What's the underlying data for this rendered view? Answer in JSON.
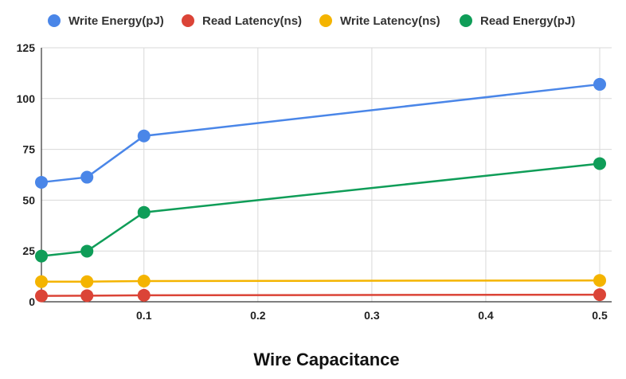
{
  "chart_data": {
    "type": "line",
    "title": "",
    "xlabel": "Wire Capacitance",
    "ylabel": "",
    "xlim": [
      0.01,
      0.5
    ],
    "ylim": [
      0,
      125
    ],
    "x_ticks": [
      0.1,
      0.2,
      0.3,
      0.4,
      0.5
    ],
    "x_tick_labels": [
      "0.1",
      "0.2",
      "0.3",
      "0.4",
      "0.5"
    ],
    "y_ticks": [
      0,
      25,
      50,
      75,
      100,
      125
    ],
    "y_tick_labels": [
      "0",
      "25",
      "50",
      "75",
      "100",
      "125"
    ],
    "grid": true,
    "legend_position": "top",
    "x": [
      0.01,
      0.05,
      0.1,
      0.5
    ],
    "series": [
      {
        "name": "Write Energy(pJ)",
        "color": "#4a86e8",
        "values": [
          58.8,
          61.3,
          81.6,
          107
        ]
      },
      {
        "name": "Read Latency(ns)",
        "color": "#db4437",
        "values": [
          2.9,
          3.0,
          3.2,
          3.5
        ]
      },
      {
        "name": "Write Latency(ns)",
        "color": "#f4b400",
        "values": [
          9.9,
          9.9,
          10.2,
          10.5
        ]
      },
      {
        "name": "Read Energy(pJ)",
        "color": "#0f9d58",
        "values": [
          22.5,
          24.9,
          44,
          68
        ]
      }
    ]
  }
}
